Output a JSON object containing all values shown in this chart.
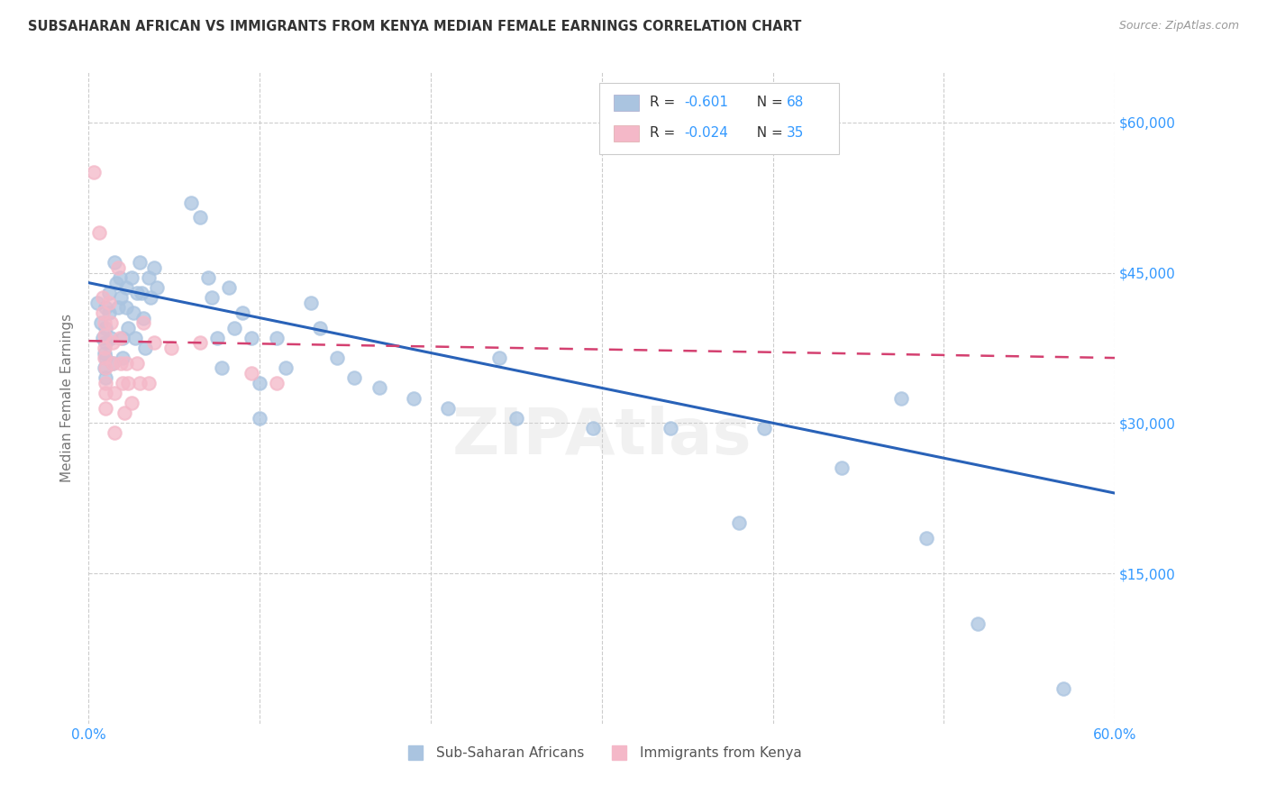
{
  "title": "SUBSAHARAN AFRICAN VS IMMIGRANTS FROM KENYA MEDIAN FEMALE EARNINGS CORRELATION CHART",
  "source": "Source: ZipAtlas.com",
  "ylabel": "Median Female Earnings",
  "xlim": [
    0.0,
    0.6
  ],
  "ylim": [
    0,
    65000
  ],
  "yticks": [
    0,
    15000,
    30000,
    45000,
    60000
  ],
  "ytick_labels": [
    "",
    "$15,000",
    "$30,000",
    "$45,000",
    "$60,000"
  ],
  "xticks": [
    0.0,
    0.1,
    0.2,
    0.3,
    0.4,
    0.5,
    0.6
  ],
  "xtick_labels": [
    "0.0%",
    "",
    "",
    "",
    "",
    "",
    "60.0%"
  ],
  "background_color": "#ffffff",
  "grid_color": "#cccccc",
  "watermark": "ZIPAtlas",
  "legend_blue_R": "-0.601",
  "legend_blue_N": "68",
  "legend_pink_R": "-0.024",
  "legend_pink_N": "35",
  "blue_fill_color": "#aac4e0",
  "blue_line_color": "#2962b8",
  "pink_fill_color": "#f4b8c8",
  "pink_line_color": "#d44070",
  "tick_label_color": "#3399ff",
  "axis_label_color": "#777777",
  "title_color": "#333333",
  "source_color": "#999999",
  "legend_R_color": "#3399ff",
  "legend_N_color": "#333333",
  "blue_scatter": [
    [
      0.005,
      42000
    ],
    [
      0.007,
      40000
    ],
    [
      0.008,
      38500
    ],
    [
      0.009,
      37000
    ],
    [
      0.009,
      35500
    ],
    [
      0.01,
      41500
    ],
    [
      0.01,
      39500
    ],
    [
      0.01,
      38000
    ],
    [
      0.01,
      36500
    ],
    [
      0.01,
      34500
    ],
    [
      0.012,
      43000
    ],
    [
      0.012,
      41000
    ],
    [
      0.013,
      38500
    ],
    [
      0.014,
      36000
    ],
    [
      0.015,
      46000
    ],
    [
      0.016,
      44000
    ],
    [
      0.017,
      41500
    ],
    [
      0.018,
      44500
    ],
    [
      0.019,
      42500
    ],
    [
      0.02,
      38500
    ],
    [
      0.02,
      36500
    ],
    [
      0.022,
      43500
    ],
    [
      0.022,
      41500
    ],
    [
      0.023,
      39500
    ],
    [
      0.025,
      44500
    ],
    [
      0.026,
      41000
    ],
    [
      0.027,
      38500
    ],
    [
      0.028,
      43000
    ],
    [
      0.03,
      46000
    ],
    [
      0.031,
      43000
    ],
    [
      0.032,
      40500
    ],
    [
      0.033,
      37500
    ],
    [
      0.035,
      44500
    ],
    [
      0.036,
      42500
    ],
    [
      0.038,
      45500
    ],
    [
      0.04,
      43500
    ],
    [
      0.06,
      52000
    ],
    [
      0.065,
      50500
    ],
    [
      0.07,
      44500
    ],
    [
      0.072,
      42500
    ],
    [
      0.075,
      38500
    ],
    [
      0.078,
      35500
    ],
    [
      0.082,
      43500
    ],
    [
      0.085,
      39500
    ],
    [
      0.09,
      41000
    ],
    [
      0.095,
      38500
    ],
    [
      0.1,
      34000
    ],
    [
      0.1,
      30500
    ],
    [
      0.11,
      38500
    ],
    [
      0.115,
      35500
    ],
    [
      0.13,
      42000
    ],
    [
      0.135,
      39500
    ],
    [
      0.145,
      36500
    ],
    [
      0.155,
      34500
    ],
    [
      0.17,
      33500
    ],
    [
      0.19,
      32500
    ],
    [
      0.21,
      31500
    ],
    [
      0.24,
      36500
    ],
    [
      0.25,
      30500
    ],
    [
      0.295,
      29500
    ],
    [
      0.34,
      29500
    ],
    [
      0.395,
      29500
    ],
    [
      0.44,
      25500
    ],
    [
      0.475,
      32500
    ],
    [
      0.49,
      18500
    ],
    [
      0.38,
      20000
    ],
    [
      0.52,
      10000
    ],
    [
      0.57,
      3500
    ]
  ],
  "pink_scatter": [
    [
      0.003,
      55000
    ],
    [
      0.006,
      49000
    ],
    [
      0.008,
      42500
    ],
    [
      0.008,
      41000
    ],
    [
      0.009,
      40000
    ],
    [
      0.009,
      38800
    ],
    [
      0.009,
      37500
    ],
    [
      0.009,
      36500
    ],
    [
      0.01,
      35500
    ],
    [
      0.01,
      34000
    ],
    [
      0.01,
      33000
    ],
    [
      0.01,
      31500
    ],
    [
      0.012,
      42000
    ],
    [
      0.013,
      40000
    ],
    [
      0.014,
      38000
    ],
    [
      0.014,
      36000
    ],
    [
      0.015,
      33000
    ],
    [
      0.015,
      29000
    ],
    [
      0.017,
      45500
    ],
    [
      0.018,
      38500
    ],
    [
      0.019,
      36000
    ],
    [
      0.02,
      34000
    ],
    [
      0.021,
      31000
    ],
    [
      0.022,
      36000
    ],
    [
      0.023,
      34000
    ],
    [
      0.025,
      32000
    ],
    [
      0.028,
      36000
    ],
    [
      0.03,
      34000
    ],
    [
      0.032,
      40000
    ],
    [
      0.035,
      34000
    ],
    [
      0.038,
      38000
    ],
    [
      0.048,
      37500
    ],
    [
      0.065,
      38000
    ],
    [
      0.095,
      35000
    ],
    [
      0.11,
      34000
    ]
  ],
  "blue_line_x": [
    0.0,
    0.6
  ],
  "blue_line_y": [
    44000,
    23000
  ],
  "pink_line_x": [
    0.0,
    0.6
  ],
  "pink_line_y": [
    38200,
    36500
  ]
}
